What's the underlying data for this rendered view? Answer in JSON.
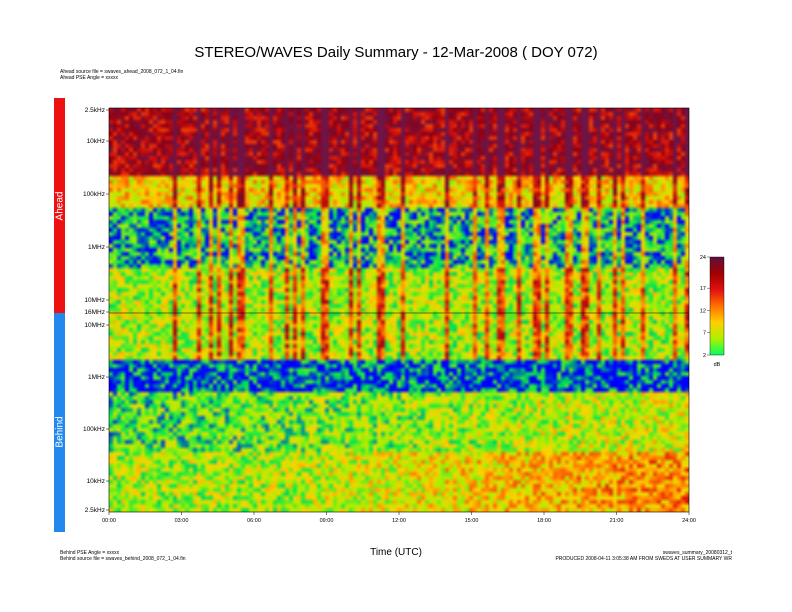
{
  "title": "STEREO/WAVES Daily Summary - 12-Mar-2008 ( DOY 072)",
  "ahead_meta": {
    "source_file": "Ahead source file = swaves_ahead_2008_072_1_04.fin",
    "pse_angle": "Ahead PSE Angle = xxxxx"
  },
  "behind_meta": {
    "pse_angle": "Behind PSE Angle = xxxxx",
    "source_file": "Behind source file = swaves_behind_2008_072_1_04.fin"
  },
  "footer_right": {
    "filename": "swaves_summary_20080312_t",
    "produced": "PRODUCED 2008-04-11 3:05:38 AM FROM SWEDS AT USER SUMMARY WR"
  },
  "panels": {
    "ahead_label": "Ahead",
    "behind_label": "Behind",
    "ahead_color": "#ee1111",
    "behind_color": "#2288ee"
  },
  "chart_data": {
    "type": "heatmap",
    "title": "STEREO/WAVES Daily Summary - 12-Mar-2008 ( DOY 072)",
    "xlabel": "Time (UTC)",
    "x_ticks": [
      "00:00",
      "03:00",
      "06:00",
      "09:00",
      "12:00",
      "15:00",
      "18:00",
      "21:00",
      "24:00"
    ],
    "xlim_hours": [
      0,
      24
    ],
    "ahead_y_ticks": [
      "2.5kHz",
      "10kHz",
      "100kHz",
      "1MHz",
      "10MHz",
      "16MHz"
    ],
    "behind_y_ticks": [
      "10MHz",
      "1MHz",
      "100kHz",
      "10kHz",
      "2.5kHz"
    ],
    "colorbar": {
      "ticks": [
        24,
        17,
        12,
        7,
        2
      ],
      "unit": "dB",
      "range": [
        2,
        24
      ],
      "colors": [
        "#00ff60",
        "#b0f000",
        "#ffd000",
        "#ff7000",
        "#e01010",
        "#a00000",
        "#601040"
      ]
    }
  }
}
